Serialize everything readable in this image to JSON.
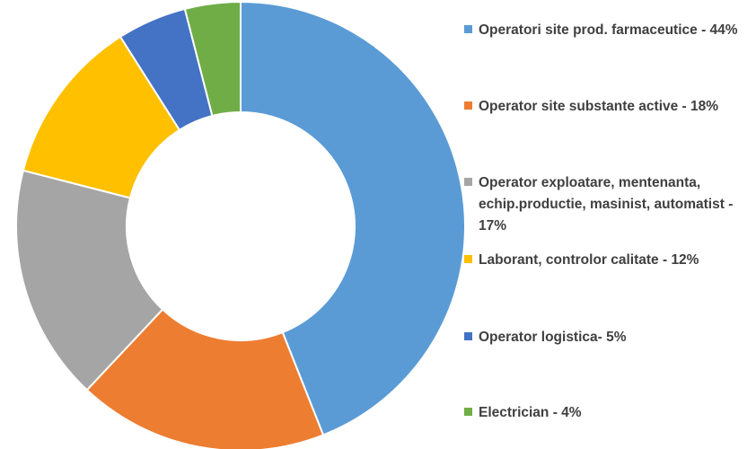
{
  "chart_data": {
    "type": "donut",
    "categories": [
      "Operatori site prod. farmaceutice - 44%",
      "Operator site substante active - 18%",
      "Operator exploatare, mentenanta, echip.productie, masinist, automatist - 17%",
      "Laborant, controlor calitate - 12%",
      "Operator logistica- 5%",
      "Electrician - 4%"
    ],
    "values": [
      44,
      18,
      17,
      12,
      5,
      4
    ],
    "colors": [
      "#5b9bd5",
      "#ed7d31",
      "#a5a5a5",
      "#ffc000",
      "#4472c4",
      "#70ad47"
    ],
    "legend": "right"
  }
}
